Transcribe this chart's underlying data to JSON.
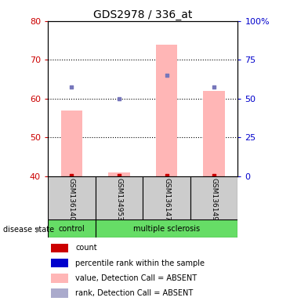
{
  "title": "GDS2978 / 336_at",
  "samples": [
    "GSM136140",
    "GSM134953",
    "GSM136147",
    "GSM136149"
  ],
  "bar_values": [
    57,
    41,
    74,
    62
  ],
  "bar_color": "#ffb6b6",
  "dot_values": [
    63,
    60,
    66,
    63
  ],
  "dot_color": "#7777bb",
  "red_dot_color": "#cc0000",
  "ylim_left": [
    40,
    80
  ],
  "ylim_right": [
    0,
    100
  ],
  "yticks_left": [
    40,
    50,
    60,
    70,
    80
  ],
  "yticks_right": [
    0,
    25,
    50,
    75,
    100
  ],
  "ytick_labels_left": [
    "40",
    "50",
    "60",
    "70",
    "80"
  ],
  "ytick_labels_right": [
    "0",
    "25",
    "50",
    "75",
    "100%"
  ],
  "grid_values": [
    50,
    60,
    70
  ],
  "left_axis_color": "#cc0000",
  "right_axis_color": "#0000cc",
  "disease_state_label": "disease state",
  "group_label_control": "control",
  "group_label_ms": "multiple sclerosis",
  "green_color": "#66dd66",
  "gray_color": "#cccccc",
  "legend_colors": [
    "#cc0000",
    "#0000cc",
    "#ffb6b6",
    "#aaaacc"
  ],
  "legend_labels": [
    "count",
    "percentile rank within the sample",
    "value, Detection Call = ABSENT",
    "rank, Detection Call = ABSENT"
  ]
}
